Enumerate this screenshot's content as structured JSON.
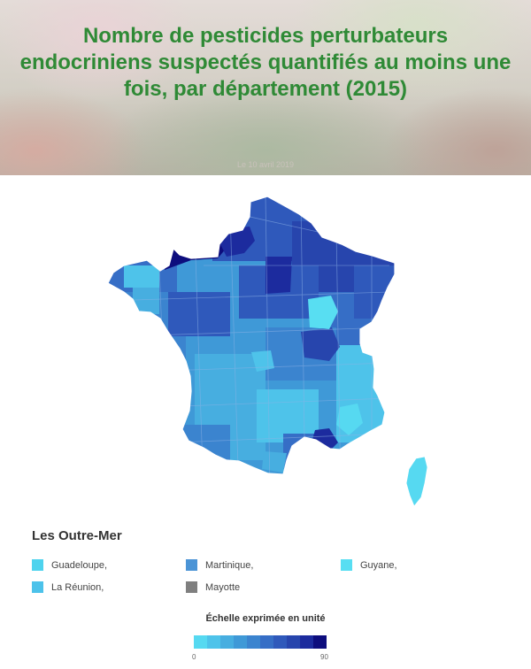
{
  "header": {
    "title": "Nombre de pesticides perturbateurs endocriniens suspectés quantifiés au moins une fois, par département (2015)",
    "date": "Le 10 avril 2019"
  },
  "map": {
    "region": "France métropolitaine",
    "color_scale": [
      "#56d9f1",
      "#4ec3ea",
      "#47aee0",
      "#3f99d7",
      "#3b84cf",
      "#366ec6",
      "#2f59bb",
      "#2745ad",
      "#1c2b9e",
      "#0d0d7d"
    ],
    "darkest_areas": [
      "Calvados",
      "Manche",
      "Seine-Maritime",
      "Bouches-du-Rhône"
    ],
    "lightest_areas": [
      "Haute-Saône",
      "Corse",
      "Hautes-Alpes",
      "Pyrénées-Orientales"
    ]
  },
  "outre_mer": {
    "title": "Les Outre-Mer",
    "territories": [
      {
        "name": "Guadeloupe,",
        "color": "#4ed3ee"
      },
      {
        "name": "Martinique,",
        "color": "#4b94d6"
      },
      {
        "name": "Guyane,",
        "color": "#58def2"
      },
      {
        "name": "La Réunion,",
        "color": "#4cc2ea"
      },
      {
        "name": "Mayotte",
        "color": "#7f7f7f"
      }
    ]
  },
  "legend": {
    "title": "Échelle exprimée en unité",
    "min": "0",
    "max": "90"
  }
}
